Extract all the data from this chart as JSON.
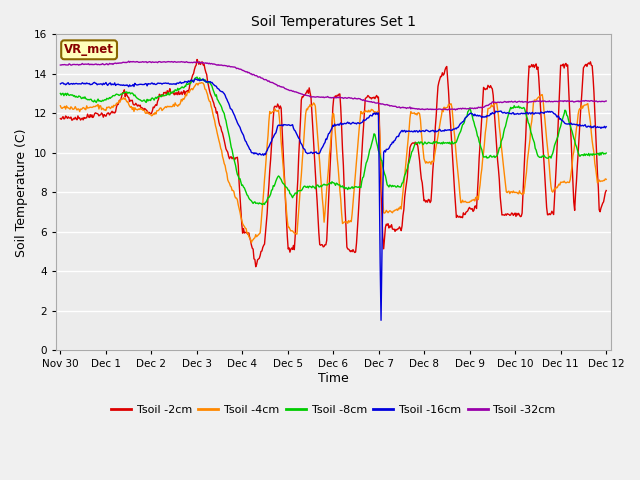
{
  "title": "Soil Temperatures Set 1",
  "xlabel": "Time",
  "ylabel": "Soil Temperature (C)",
  "ylim": [
    0,
    16
  ],
  "yticks": [
    0,
    2,
    4,
    6,
    8,
    10,
    12,
    14,
    16
  ],
  "x_labels": [
    "Nov 30",
    "Dec 1",
    "Dec 2",
    "Dec 3",
    "Dec 4",
    "Dec 5",
    "Dec 6",
    "Dec 7",
    "Dec 8",
    "Dec 9",
    "Dec 10",
    "Dec 11",
    "Dec 12"
  ],
  "bg_color": "#e8e8e8",
  "colors": {
    "Tsoil -2cm": "#dd0000",
    "Tsoil -4cm": "#ff8800",
    "Tsoil -8cm": "#00cc00",
    "Tsoil -16cm": "#0000dd",
    "Tsoil -32cm": "#9900aa"
  },
  "annotation_text": "VR_met",
  "annotation_box_color": "#ffffbb",
  "annotation_box_edge": "#886600"
}
